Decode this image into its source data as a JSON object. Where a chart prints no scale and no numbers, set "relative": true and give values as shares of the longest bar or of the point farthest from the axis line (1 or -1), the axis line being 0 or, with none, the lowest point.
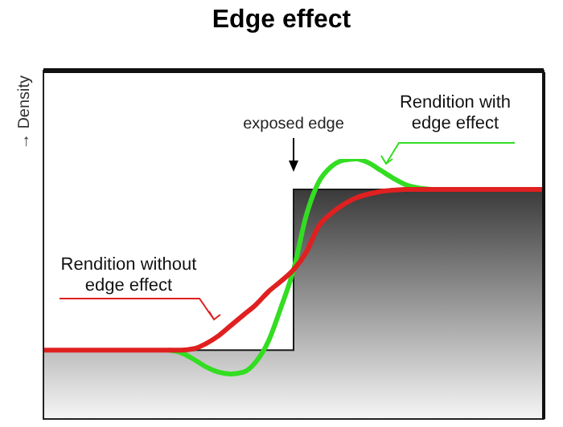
{
  "chart_data": {
    "type": "line",
    "title": "Edge effect",
    "ylabel": "→ Density",
    "relative": true,
    "categories": [
      null,
      null,
      null,
      null,
      null,
      null,
      null,
      null,
      null,
      null,
      null,
      null,
      null,
      null,
      null,
      null,
      null,
      null,
      null,
      null,
      null,
      null,
      null,
      null,
      null,
      null,
      null,
      null,
      null,
      null,
      null,
      null,
      null,
      null,
      null,
      null,
      null,
      null,
      null,
      null,
      null
    ],
    "series": [
      {
        "type": "area",
        "color": "#1a1a1a",
        "values": [
          0.265,
          0.265,
          0.265,
          0.265,
          0.265,
          0.265,
          0.265,
          0.265,
          0.265,
          0.265,
          0.265,
          0.265,
          0.265,
          0.265,
          0.265,
          0.265,
          0.265,
          0.265,
          0.265,
          0.265,
          0.883,
          0.883,
          0.883,
          0.883,
          0.883,
          0.883,
          0.883,
          0.883,
          0.883,
          0.883,
          0.883,
          0.883,
          0.883,
          0.883,
          0.883,
          0.883,
          0.883,
          0.883,
          0.883,
          0.883,
          0.883
        ]
      },
      {
        "name": "Rendition with edge effect",
        "color": "#33dd22",
        "values": [
          null,
          null,
          null,
          null,
          null,
          null,
          null,
          null,
          null,
          null,
          0.265,
          0.255,
          0.23,
          0.2,
          0.18,
          0.173,
          0.18,
          0.22,
          0.3,
          0.43,
          0.574,
          0.78,
          0.91,
          0.97,
          0.995,
          1,
          0.985,
          0.955,
          0.925,
          0.9,
          0.888,
          0.883,
          null,
          null,
          null,
          null,
          null,
          null,
          null,
          null,
          null
        ]
      },
      {
        "name": "Rendition without edge effect",
        "color": "#e02020",
        "values": [
          0.265,
          0.265,
          0.265,
          0.265,
          0.265,
          0.265,
          0.265,
          0.265,
          0.265,
          0.265,
          0.265,
          0.265,
          0.27,
          0.29,
          0.32,
          0.36,
          0.4,
          0.44,
          0.49,
          0.53,
          0.574,
          0.64,
          0.74,
          0.79,
          0.825,
          0.85,
          0.865,
          0.875,
          0.88,
          0.883,
          0.883,
          0.883,
          0.883,
          0.883,
          0.883,
          0.883,
          0.883,
          0.883,
          0.883,
          0.883,
          0.883
        ]
      }
    ],
    "annotations": [
      "exposed edge"
    ]
  }
}
